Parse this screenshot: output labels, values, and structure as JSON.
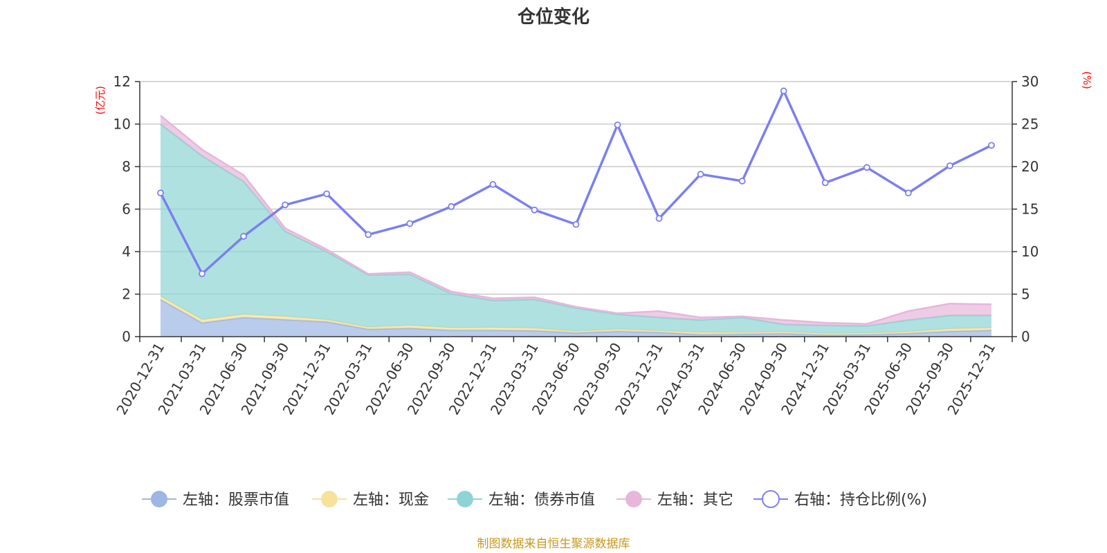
{
  "chart_data": {
    "type": "area",
    "title": "仓位变化",
    "left_axis": {
      "unit_label": "(亿元)",
      "ticks": [
        "0",
        "2",
        "4",
        "6",
        "8",
        "10",
        "12"
      ],
      "range": [
        0,
        12
      ]
    },
    "right_axis": {
      "unit_label": "(%)",
      "ticks": [
        "0",
        "5",
        "10",
        "15",
        "20",
        "25",
        "30"
      ],
      "range": [
        0,
        30
      ]
    },
    "categories": [
      "2020-12-31",
      "2021-03-31",
      "2021-06-30",
      "2021-09-30",
      "2021-12-31",
      "2022-03-31",
      "2022-06-30",
      "2022-09-30",
      "2022-12-31",
      "2023-03-31",
      "2023-06-30",
      "2023-09-30",
      "2023-12-31",
      "2024-03-31",
      "2024-06-30",
      "2024-09-30",
      "2024-12-31",
      "2025-03-31",
      "2025-06-30",
      "2025-09-30",
      "2025-12-31"
    ],
    "stacked_series": [
      {
        "name": "左轴：股票市值",
        "axis": "left",
        "color": "#9db6e4",
        "values": [
          1.75,
          0.65,
          0.9,
          0.8,
          0.7,
          0.35,
          0.4,
          0.3,
          0.3,
          0.28,
          0.18,
          0.25,
          0.2,
          0.1,
          0.12,
          0.15,
          0.08,
          0.1,
          0.15,
          0.25,
          0.3
        ]
      },
      {
        "name": "左轴：现金",
        "axis": "left",
        "color": "#f7e29b",
        "values": [
          0.15,
          0.15,
          0.15,
          0.15,
          0.1,
          0.1,
          0.13,
          0.12,
          0.13,
          0.12,
          0.07,
          0.1,
          0.08,
          0.1,
          0.08,
          0.08,
          0.07,
          0.07,
          0.08,
          0.12,
          0.12
        ]
      },
      {
        "name": "左轴：债券市值",
        "axis": "left",
        "color": "#8fd4d4",
        "values": [
          8.1,
          7.7,
          6.25,
          4.0,
          3.2,
          2.45,
          2.4,
          1.6,
          1.27,
          1.35,
          1.1,
          0.7,
          0.62,
          0.58,
          0.7,
          0.35,
          0.38,
          0.33,
          0.55,
          0.63,
          0.58
        ]
      },
      {
        "name": "左轴：其它",
        "axis": "left",
        "color": "#e7b6da",
        "values": [
          0.4,
          0.3,
          0.3,
          0.15,
          0.1,
          0.05,
          0.1,
          0.1,
          0.1,
          0.1,
          0.05,
          0.05,
          0.3,
          0.12,
          0.05,
          0.2,
          0.12,
          0.1,
          0.42,
          0.55,
          0.52
        ]
      }
    ],
    "line_series": {
      "name": "右轴：持仓比例(%)",
      "axis": "right",
      "color": "#7b7ff0",
      "values": [
        16.9,
        7.4,
        11.8,
        15.5,
        16.8,
        12.0,
        13.3,
        15.3,
        17.9,
        14.9,
        13.2,
        24.9,
        13.9,
        19.1,
        18.3,
        28.9,
        18.1,
        19.9,
        16.9,
        20.1,
        22.5
      ]
    },
    "legend": [
      {
        "label": "左轴：股票市值",
        "color": "#9db6e4",
        "style": "filled"
      },
      {
        "label": "左轴：现金",
        "color": "#f7e29b",
        "style": "filled"
      },
      {
        "label": "左轴：债券市值",
        "color": "#8fd4d4",
        "style": "filled"
      },
      {
        "label": "左轴：其它",
        "color": "#e7b6da",
        "style": "filled"
      },
      {
        "label": "右轴：持仓比例(%)",
        "color": "#7b7ff0",
        "style": "hollow"
      }
    ],
    "legend_position": "bottom",
    "grid": true
  },
  "footer": "制图数据来自恒生聚源数据库"
}
